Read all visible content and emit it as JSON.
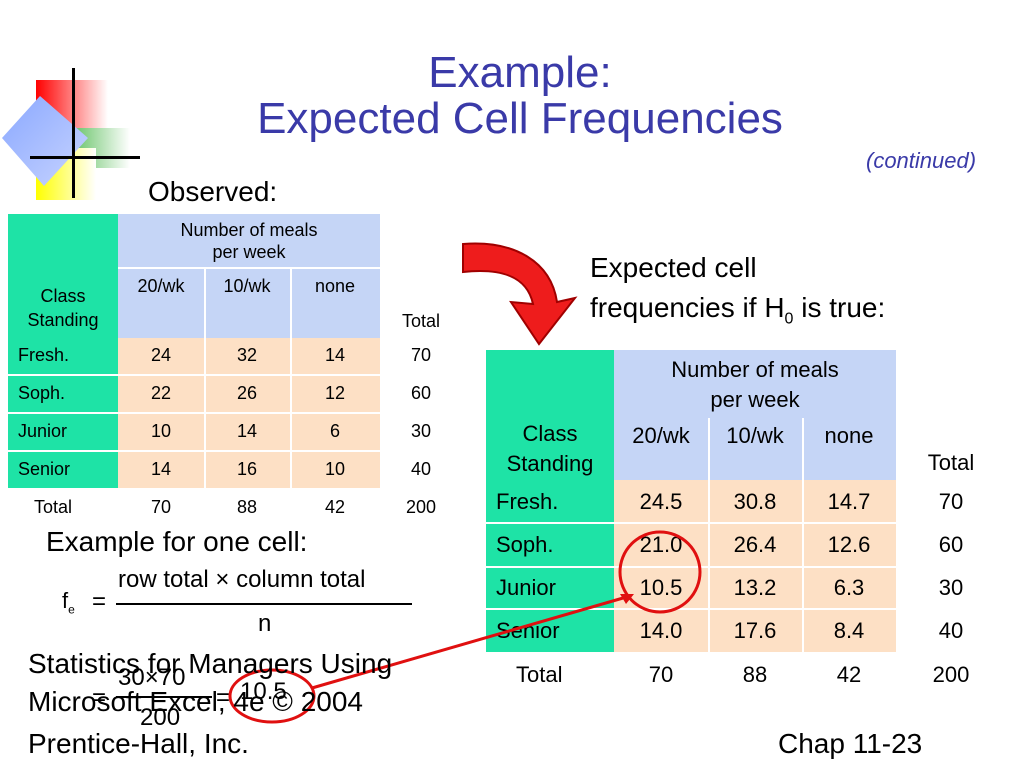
{
  "title": {
    "line1": "Example:",
    "line2": "Expected Cell Frequencies",
    "continued": "(continued)"
  },
  "observed": {
    "label": "Observed:",
    "header": {
      "group": "Number of meals",
      "group2": "per week",
      "row_label_1": "Class",
      "row_label_2": "Standing",
      "cols": [
        "20/wk",
        "10/wk",
        "none"
      ],
      "total": "Total"
    },
    "rows": [
      {
        "label": "Fresh.",
        "values": [
          "24",
          "32",
          "14"
        ],
        "total": "70"
      },
      {
        "label": "Soph.",
        "values": [
          "22",
          "26",
          "12"
        ],
        "total": "60"
      },
      {
        "label": "Junior",
        "values": [
          "10",
          "14",
          "6"
        ],
        "total": "30"
      },
      {
        "label": "Senior",
        "values": [
          "14",
          "16",
          "10"
        ],
        "total": "40"
      }
    ],
    "totals": {
      "label": "Total",
      "values": [
        "70",
        "88",
        "42"
      ],
      "total": "200"
    }
  },
  "expected_label": {
    "line1": "Expected cell",
    "line2a": "frequencies  if H",
    "sub": "0",
    "line2b": " is true:"
  },
  "expected": {
    "header": {
      "group": "Number of meals",
      "group2": "per week",
      "row_label_1": "Class",
      "row_label_2": "Standing",
      "cols": [
        "20/wk",
        "10/wk",
        "none"
      ],
      "total": "Total"
    },
    "rows": [
      {
        "label": "Fresh.",
        "values": [
          "24.5",
          "30.8",
          "14.7"
        ],
        "total": "70"
      },
      {
        "label": "Soph.",
        "values": [
          "21.0",
          "26.4",
          "12.6"
        ],
        "total": "60"
      },
      {
        "label": "Junior",
        "values": [
          "10.5",
          "13.2",
          "6.3"
        ],
        "total": "30"
      },
      {
        "label": "Senior",
        "values": [
          "14.0",
          "17.6",
          "8.4"
        ],
        "total": "40"
      }
    ],
    "totals": {
      "label": "Total",
      "values": [
        "70",
        "88",
        "42"
      ],
      "total": "200"
    }
  },
  "example": {
    "label": "Example for one cell:",
    "fe": "f",
    "fe_sub": "e",
    "eq": "=",
    "numerator": "row total",
    "times": "×",
    "numerator2": "column total",
    "denominator": "n",
    "calc_num_a": "30",
    "calc_num_b": "70",
    "calc_den": "200",
    "calc_result": "10.5"
  },
  "footer": {
    "line1": "Statistics for Managers Using",
    "line2": "Microsoft Excel, 4e © 2004",
    "line3": "Prentice-Hall, Inc.",
    "chap": "Chap 11-23"
  },
  "colors": {
    "title": "#3a3aa8",
    "green": "#1ee3a6",
    "blue": "#c5d5f6",
    "peach": "#fde0c5",
    "arrow": "#ee1c1c"
  }
}
